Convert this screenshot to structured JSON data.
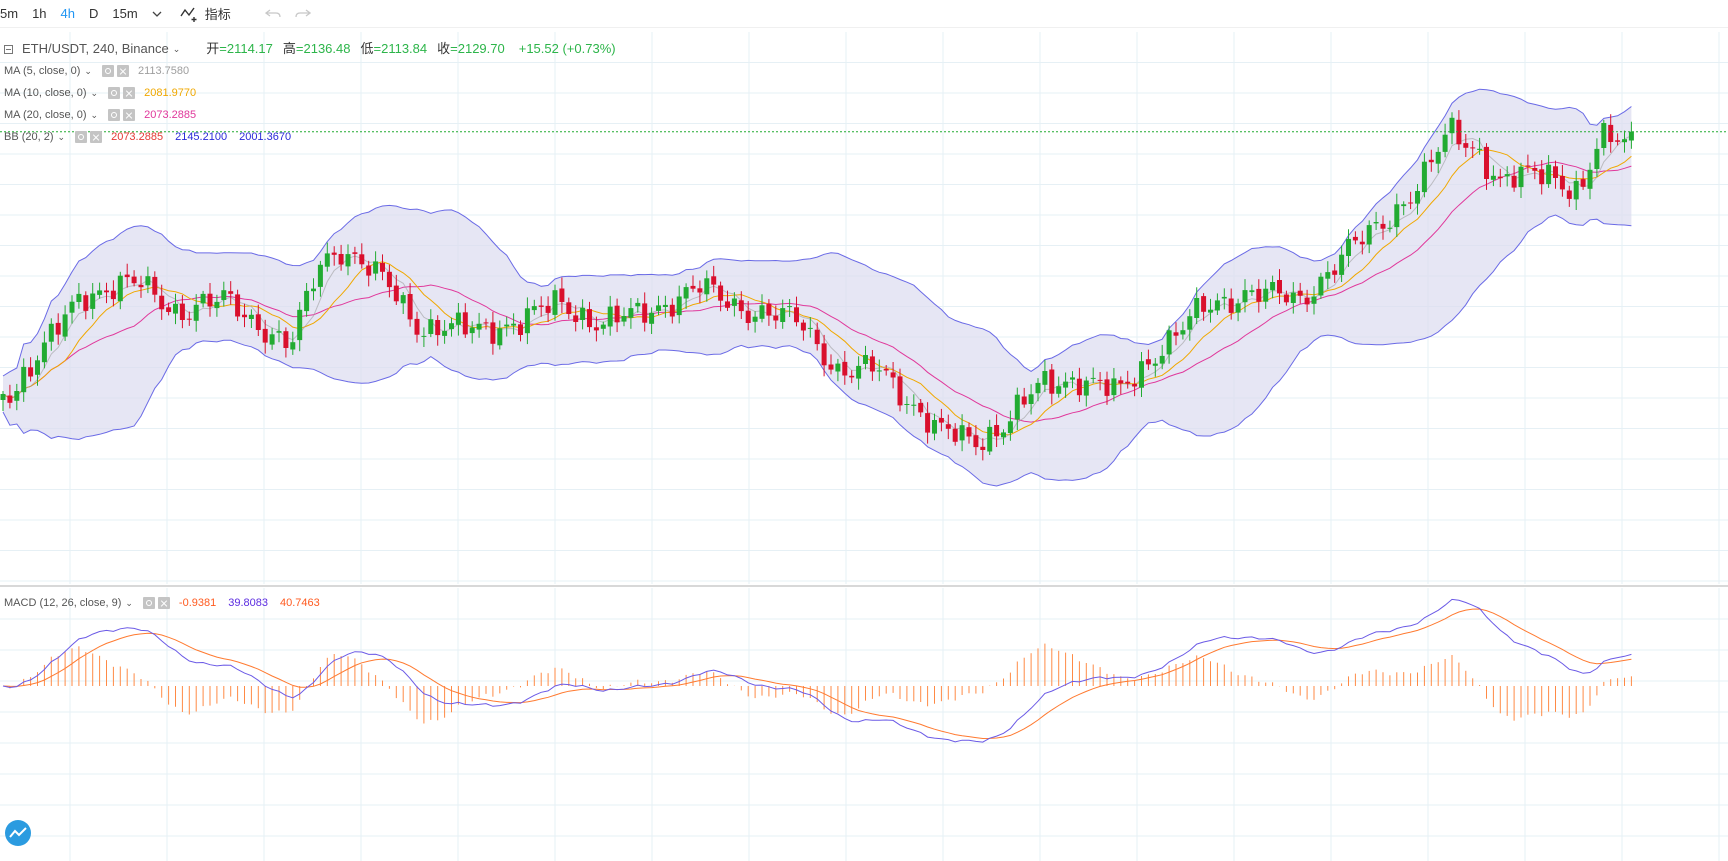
{
  "toolbar": {
    "timeframes": [
      "5m",
      "1h",
      "4h",
      "D",
      "15m"
    ],
    "active_timeframe": "4h",
    "dropdown_icon": "chevron-down-icon",
    "indicators_label": "指标",
    "indicators_icon": "indicators-icon",
    "undo_icon": "undo-icon",
    "redo_icon": "redo-icon"
  },
  "legend": {
    "symbol": "ETH/USDT, 240, Binance",
    "open_label": "开",
    "open": "=2114.17",
    "high_label": "高",
    "high": "=2136.48",
    "low_label": "低",
    "low": "=2113.84",
    "close_label": "收",
    "close": "=2129.70",
    "change": "+15.52 (+0.73%)",
    "indicators": [
      {
        "name": "MA (5, close, 0)",
        "values": [
          "2113.7580"
        ]
      },
      {
        "name": "MA (10, close, 0)",
        "values": [
          "2081.9770"
        ]
      },
      {
        "name": "MA (20, close, 0)",
        "values": [
          "2073.2885"
        ]
      },
      {
        "name": "BB (20, 2)",
        "values": [
          "2073.2885",
          "2145.2100",
          "2001.3670"
        ]
      }
    ]
  },
  "macd_legend": {
    "name": "MACD (12, 26, close, 9)",
    "values": [
      "-0.9381",
      "39.8083",
      "40.7463"
    ]
  },
  "colors": {
    "up": "#22ab32",
    "down": "#d9102d",
    "ma5": "#9e9e9e",
    "ma10": "#f0a800",
    "ma20": "#e0389b",
    "bb_band": "#6a6ae6",
    "bb_fill": "#dcdcf0",
    "macd_diff": "#6b5ae6",
    "macd_dea": "#ff7a30",
    "macd_hist": "#ff8a45",
    "grid": "#e6f0f5",
    "last_price": "#22ab32"
  },
  "chart_data": {
    "type": "candlestick",
    "symbol": "ETH/USDT",
    "interval": "240",
    "exchange": "Binance",
    "last_candle": {
      "open": 2114.17,
      "high": 2136.48,
      "low": 2113.84,
      "close": 2129.7
    },
    "series": [
      {
        "name": "MA (5, close, 0)",
        "last": 2113.758
      },
      {
        "name": "MA (10, close, 0)",
        "last": 2081.977
      },
      {
        "name": "MA (20, close, 0)",
        "last": 2073.2885
      },
      {
        "name": "BB (20, 2)",
        "middle": 2073.2885,
        "upper": 2145.21,
        "lower": 2001.367
      },
      {
        "name": "MACD (12, 26, close, 9)",
        "histogram": -0.9381,
        "macd": 39.8083,
        "signal": 40.7463
      }
    ],
    "grid": true
  }
}
